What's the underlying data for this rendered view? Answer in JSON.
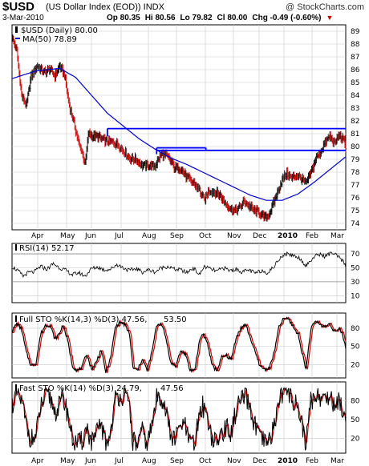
{
  "header": {
    "symbol": "$USD",
    "name": "(US Dollar Index (EOD)) INDX",
    "watermark": "@ StockCharts.com",
    "date": "3-Mar-2010",
    "open": "Op 80.35",
    "high": "Hi 80.56",
    "low": "Lo 79.82",
    "close": "Cl 80.00",
    "change": "Chg -0.49 (-0.60%)"
  },
  "colors": {
    "price": "#000000",
    "ma": "#0000cc",
    "trendline": "#0000ff",
    "rsi": "#000000",
    "fast": "#000000",
    "slow": "#cc0000",
    "grid": "#c8c8c8"
  },
  "months": [
    "Apr",
    "May",
    "Jun",
    "Jul",
    "Aug",
    "Sep",
    "Oct",
    "Nov",
    "Dec",
    "2010",
    "Feb",
    "Mar"
  ],
  "chart_data": [
    {
      "type": "line",
      "panel": "price",
      "legend": [
        "$USD (Daily) 80.00",
        "MA(50) 78.89"
      ],
      "ylim": [
        73.5,
        89.5
      ],
      "yticks": [
        74,
        75,
        76,
        77,
        78,
        79,
        80,
        81,
        82,
        83,
        84,
        85,
        86,
        87,
        88,
        89
      ],
      "x_months": [
        "Apr",
        "May",
        "Jun",
        "Jul",
        "Aug",
        "Sep",
        "Oct",
        "Nov",
        "Dec",
        "2010",
        "Feb",
        "Mar"
      ],
      "price_anchors": [
        [
          0,
          88.5
        ],
        [
          6,
          87.5
        ],
        [
          12,
          84
        ],
        [
          18,
          83.2
        ],
        [
          24,
          85.5
        ],
        [
          32,
          86.3
        ],
        [
          40,
          85.8
        ],
        [
          48,
          86
        ],
        [
          54,
          85.5
        ],
        [
          60,
          86.3
        ],
        [
          66,
          85.6
        ],
        [
          72,
          83.2
        ],
        [
          78,
          81.8
        ],
        [
          84,
          80.2
        ],
        [
          88,
          79.6
        ],
        [
          92,
          78.6
        ],
        [
          96,
          81
        ],
        [
          102,
          80.8
        ],
        [
          110,
          80.7
        ],
        [
          118,
          80.4
        ],
        [
          124,
          80.4
        ],
        [
          132,
          80.2
        ],
        [
          140,
          79.7
        ],
        [
          148,
          79.1
        ],
        [
          156,
          79
        ],
        [
          164,
          78.5
        ],
        [
          172,
          78.5
        ],
        [
          180,
          78.5
        ],
        [
          188,
          79.4
        ],
        [
          196,
          79.2
        ],
        [
          204,
          78.4
        ],
        [
          212,
          78.3
        ],
        [
          220,
          77.6
        ],
        [
          228,
          77.2
        ],
        [
          236,
          76.6
        ],
        [
          242,
          75.8
        ],
        [
          248,
          76.6
        ],
        [
          256,
          76.4
        ],
        [
          262,
          76.2
        ],
        [
          268,
          75.6
        ],
        [
          274,
          75.2
        ],
        [
          280,
          75
        ],
        [
          286,
          75.2
        ],
        [
          292,
          75.7
        ],
        [
          298,
          75.4
        ],
        [
          304,
          75
        ],
        [
          310,
          74.9
        ],
        [
          316,
          74.5
        ],
        [
          322,
          74.6
        ],
        [
          326,
          75.1
        ],
        [
          330,
          75.7
        ],
        [
          334,
          76.4
        ],
        [
          340,
          77.4
        ],
        [
          346,
          77.9
        ],
        [
          352,
          77.5
        ],
        [
          358,
          77.8
        ],
        [
          364,
          77.5
        ],
        [
          370,
          77.1
        ],
        [
          376,
          77.9
        ],
        [
          382,
          79
        ],
        [
          388,
          79.6
        ],
        [
          394,
          80.3
        ],
        [
          400,
          80.8
        ],
        [
          406,
          80.2
        ],
        [
          412,
          80.9
        ],
        [
          418,
          80.4
        ],
        [
          420,
          80
        ]
      ],
      "ma_anchors": [
        [
          0,
          85.3
        ],
        [
          30,
          85.9
        ],
        [
          60,
          86.1
        ],
        [
          80,
          85.4
        ],
        [
          100,
          84
        ],
        [
          120,
          82.6
        ],
        [
          140,
          81.6
        ],
        [
          160,
          80.6
        ],
        [
          180,
          79.8
        ],
        [
          200,
          79.1
        ],
        [
          220,
          78.6
        ],
        [
          240,
          78
        ],
        [
          260,
          77.4
        ],
        [
          280,
          76.8
        ],
        [
          300,
          76.2
        ],
        [
          320,
          75.8
        ],
        [
          340,
          75.8
        ],
        [
          360,
          76.3
        ],
        [
          380,
          77.2
        ],
        [
          400,
          78.2
        ],
        [
          420,
          79.2
        ]
      ],
      "trendlines": [
        [
          [
            120,
            81.4
          ],
          [
            432,
            81.4
          ]
        ],
        [
          [
            120,
            80.8
          ],
          [
            120,
            81.4
          ]
        ],
        [
          [
            182,
            79.7
          ],
          [
            432,
            79.7
          ]
        ],
        [
          [
            182,
            79.4
          ],
          [
            182,
            79.9
          ]
        ],
        [
          [
            182,
            79.9
          ],
          [
            244,
            79.9
          ]
        ],
        [
          [
            244,
            79.9
          ],
          [
            244,
            79.7
          ]
        ]
      ]
    },
    {
      "type": "line",
      "panel": "rsi",
      "legend": [
        "RSI(14) 52.17"
      ],
      "ylim": [
        0,
        85
      ],
      "yticks": [
        10,
        30,
        50,
        70
      ],
      "anchors": [
        [
          0,
          52
        ],
        [
          8,
          45
        ],
        [
          14,
          38
        ],
        [
          20,
          43
        ],
        [
          28,
          44
        ],
        [
          36,
          52
        ],
        [
          44,
          48
        ],
        [
          52,
          56
        ],
        [
          60,
          50
        ],
        [
          68,
          46
        ],
        [
          76,
          40
        ],
        [
          84,
          43
        ],
        [
          92,
          38
        ],
        [
          100,
          49
        ],
        [
          108,
          51
        ],
        [
          116,
          47
        ],
        [
          124,
          48
        ],
        [
          132,
          55
        ],
        [
          140,
          50
        ],
        [
          148,
          46
        ],
        [
          156,
          49
        ],
        [
          164,
          44
        ],
        [
          172,
          47
        ],
        [
          180,
          44
        ],
        [
          188,
          50
        ],
        [
          196,
          52
        ],
        [
          204,
          48
        ],
        [
          212,
          47
        ],
        [
          220,
          43
        ],
        [
          228,
          50
        ],
        [
          236,
          40
        ],
        [
          242,
          52
        ],
        [
          250,
          48
        ],
        [
          258,
          45
        ],
        [
          266,
          50
        ],
        [
          274,
          46
        ],
        [
          282,
          48
        ],
        [
          290,
          44
        ],
        [
          298,
          47
        ],
        [
          306,
          42
        ],
        [
          314,
          46
        ],
        [
          322,
          43
        ],
        [
          330,
          52
        ],
        [
          338,
          66
        ],
        [
          346,
          70
        ],
        [
          354,
          68
        ],
        [
          362,
          64
        ],
        [
          370,
          53
        ],
        [
          378,
          63
        ],
        [
          386,
          70
        ],
        [
          394,
          66
        ],
        [
          402,
          72
        ],
        [
          410,
          66
        ],
        [
          416,
          60
        ],
        [
          420,
          52
        ]
      ]
    },
    {
      "type": "line",
      "panel": "full_sto",
      "legend": [
        "Full STO %K(14,3) %D(3) 47.56,",
        "53.50"
      ],
      "ylim": [
        -2,
        105
      ],
      "yticks": [
        20,
        50,
        80
      ],
      "k_anchors": [
        [
          0,
          75
        ],
        [
          6,
          88
        ],
        [
          12,
          78
        ],
        [
          18,
          40
        ],
        [
          24,
          18
        ],
        [
          30,
          22
        ],
        [
          36,
          70
        ],
        [
          42,
          85
        ],
        [
          48,
          85
        ],
        [
          54,
          62
        ],
        [
          60,
          72
        ],
        [
          64,
          86
        ],
        [
          70,
          60
        ],
        [
          76,
          18
        ],
        [
          82,
          10
        ],
        [
          88,
          15
        ],
        [
          94,
          38
        ],
        [
          100,
          12
        ],
        [
          106,
          24
        ],
        [
          112,
          45
        ],
        [
          118,
          8
        ],
        [
          124,
          30
        ],
        [
          130,
          82
        ],
        [
          136,
          90
        ],
        [
          142,
          86
        ],
        [
          148,
          70
        ],
        [
          152,
          15
        ],
        [
          158,
          10
        ],
        [
          164,
          30
        ],
        [
          170,
          10
        ],
        [
          176,
          40
        ],
        [
          182,
          85
        ],
        [
          188,
          88
        ],
        [
          194,
          62
        ],
        [
          200,
          22
        ],
        [
          206,
          18
        ],
        [
          212,
          42
        ],
        [
          218,
          38
        ],
        [
          224,
          10
        ],
        [
          230,
          12
        ],
        [
          236,
          60
        ],
        [
          240,
          72
        ],
        [
          246,
          55
        ],
        [
          252,
          18
        ],
        [
          258,
          10
        ],
        [
          264,
          32
        ],
        [
          270,
          35
        ],
        [
          276,
          28
        ],
        [
          282,
          65
        ],
        [
          288,
          80
        ],
        [
          294,
          86
        ],
        [
          300,
          64
        ],
        [
          306,
          40
        ],
        [
          312,
          18
        ],
        [
          318,
          12
        ],
        [
          324,
          15
        ],
        [
          330,
          40
        ],
        [
          336,
          82
        ],
        [
          342,
          96
        ],
        [
          348,
          95
        ],
        [
          354,
          82
        ],
        [
          360,
          70
        ],
        [
          366,
          35
        ],
        [
          370,
          12
        ],
        [
          376,
          78
        ],
        [
          382,
          92
        ],
        [
          388,
          86
        ],
        [
          394,
          82
        ],
        [
          400,
          88
        ],
        [
          406,
          74
        ],
        [
          412,
          78
        ],
        [
          416,
          70
        ],
        [
          420,
          47.5
        ]
      ],
      "d_lag": 2,
      "d_label": "53.50"
    },
    {
      "type": "line",
      "panel": "fast_sto",
      "legend": [
        "Fast STO %K(14) %D(3) 24.79,",
        "47.56"
      ],
      "ylim": [
        -4,
        110
      ],
      "yticks": [
        20,
        50,
        80
      ],
      "amplitude": 35,
      "d_label": "47.56"
    }
  ]
}
